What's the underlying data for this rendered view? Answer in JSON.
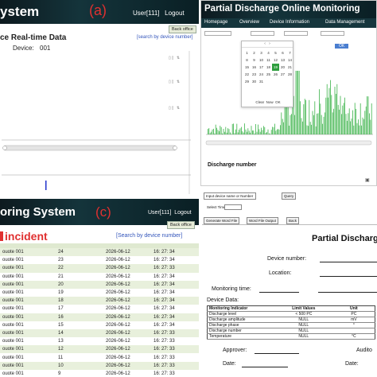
{
  "panel_a": {
    "title": "ystem",
    "label": "(a)",
    "user": "User[111]",
    "logout": "Logout",
    "back": "Back office",
    "heading": "ce Real-time Data",
    "search": "[search by device number]",
    "device_label": "Device:",
    "device_value": "001",
    "colors": {
      "bar": "#14343b",
      "label": "#e03030"
    }
  },
  "panel_b": {
    "title": "Partial Discharge Online Monitoring",
    "nav": [
      "Homepage",
      "Overview",
      "Device Information",
      "Data Management"
    ],
    "calendar_days": [
      "1",
      "2",
      "3",
      "4",
      "5",
      "6",
      "7",
      "8",
      "9",
      "10",
      "11",
      "12",
      "13",
      "14",
      "15",
      "16",
      "17",
      "18",
      "19",
      "20",
      "21",
      "22",
      "23",
      "24",
      "25",
      "26",
      "27",
      "28",
      "29",
      "30",
      "31"
    ],
    "calendar_highlight": "19",
    "calendar_footer": [
      "Clear",
      "Now",
      "OK"
    ],
    "ok": "OK",
    "discharge_number": "Discharge number",
    "colors": {
      "series": "#3cb34a",
      "highlight": "#2e9e3e"
    }
  },
  "panel_c": {
    "title": "oring System",
    "label": "(c)",
    "user": "User[111]",
    "logout": "Logout",
    "back": "Back office",
    "heading": "incident",
    "search": "[Search by device number]",
    "rows": [
      {
        "dev": "ouote 001",
        "n": "24",
        "date": "2026-06-12",
        "time": "16: 27: 34"
      },
      {
        "dev": "ouote 001",
        "n": "23",
        "date": "2026-06-12",
        "time": "16: 27: 34"
      },
      {
        "dev": "ouote 001",
        "n": "22",
        "date": "2026-06-12",
        "time": "16: 27: 33"
      },
      {
        "dev": "ouote 001",
        "n": "21",
        "date": "2026-06-12",
        "time": "16: 27: 34"
      },
      {
        "dev": "ouote 001",
        "n": "20",
        "date": "2026-06-12",
        "time": "16: 27: 34"
      },
      {
        "dev": "ouote 001",
        "n": "19",
        "date": "2026-06-12",
        "time": "16: 27: 34"
      },
      {
        "dev": "ouote 001",
        "n": "18",
        "date": "2026-06-12",
        "time": "16: 27: 34"
      },
      {
        "dev": "ouote 001",
        "n": "17",
        "date": "2026-06-12",
        "time": "16: 27: 34"
      },
      {
        "dev": "ouote 001",
        "n": "16",
        "date": "2026-06-12",
        "time": "16: 27: 34"
      },
      {
        "dev": "ouote 001",
        "n": "15",
        "date": "2026-06-12",
        "time": "16: 27: 34"
      },
      {
        "dev": "ouote 001",
        "n": "14",
        "date": "2026-06-12",
        "time": "16: 27: 33"
      },
      {
        "dev": "ouote 001",
        "n": "13",
        "date": "2026-06-12",
        "time": "16: 27: 33"
      },
      {
        "dev": "ouote 001",
        "n": "12",
        "date": "2026-06-12",
        "time": "16: 27: 33"
      },
      {
        "dev": "ouote 001",
        "n": "11",
        "date": "2026-06-12",
        "time": "16: 27: 33"
      },
      {
        "dev": "ouote 001",
        "n": "10",
        "date": "2026-06-12",
        "time": "16: 27: 33"
      },
      {
        "dev": "ouote 001",
        "n": "9",
        "date": "2026-06-12",
        "time": "16: 27: 33"
      }
    ]
  },
  "panel_d": {
    "input": "Input device name or Number",
    "select_time": "Select Time",
    "query": "Query",
    "gen_word": "Generate Word File",
    "word_output": "Word File Output",
    "back": "Back",
    "title": "Partial Discharge",
    "device_number": "Device number:",
    "location": "Location:",
    "monitoring_time": "Monitoring time:",
    "device_data": "Device Data:",
    "spec_headers": [
      "Monitoring Indicator",
      "Limit Values",
      "Unit"
    ],
    "spec_rows": [
      [
        "Discharge level",
        "< 500 PC",
        "PC"
      ],
      [
        "Discharge amplitude",
        "NULL",
        "mV"
      ],
      [
        "Discharge phase",
        "NULL",
        "°"
      ],
      [
        "Discharge number",
        "NULL",
        ""
      ],
      [
        "Temperature",
        "NULL",
        "°C"
      ]
    ],
    "approver": "Approver:",
    "date": "Date:",
    "auditor": "Audito",
    "date2": "Date:"
  }
}
